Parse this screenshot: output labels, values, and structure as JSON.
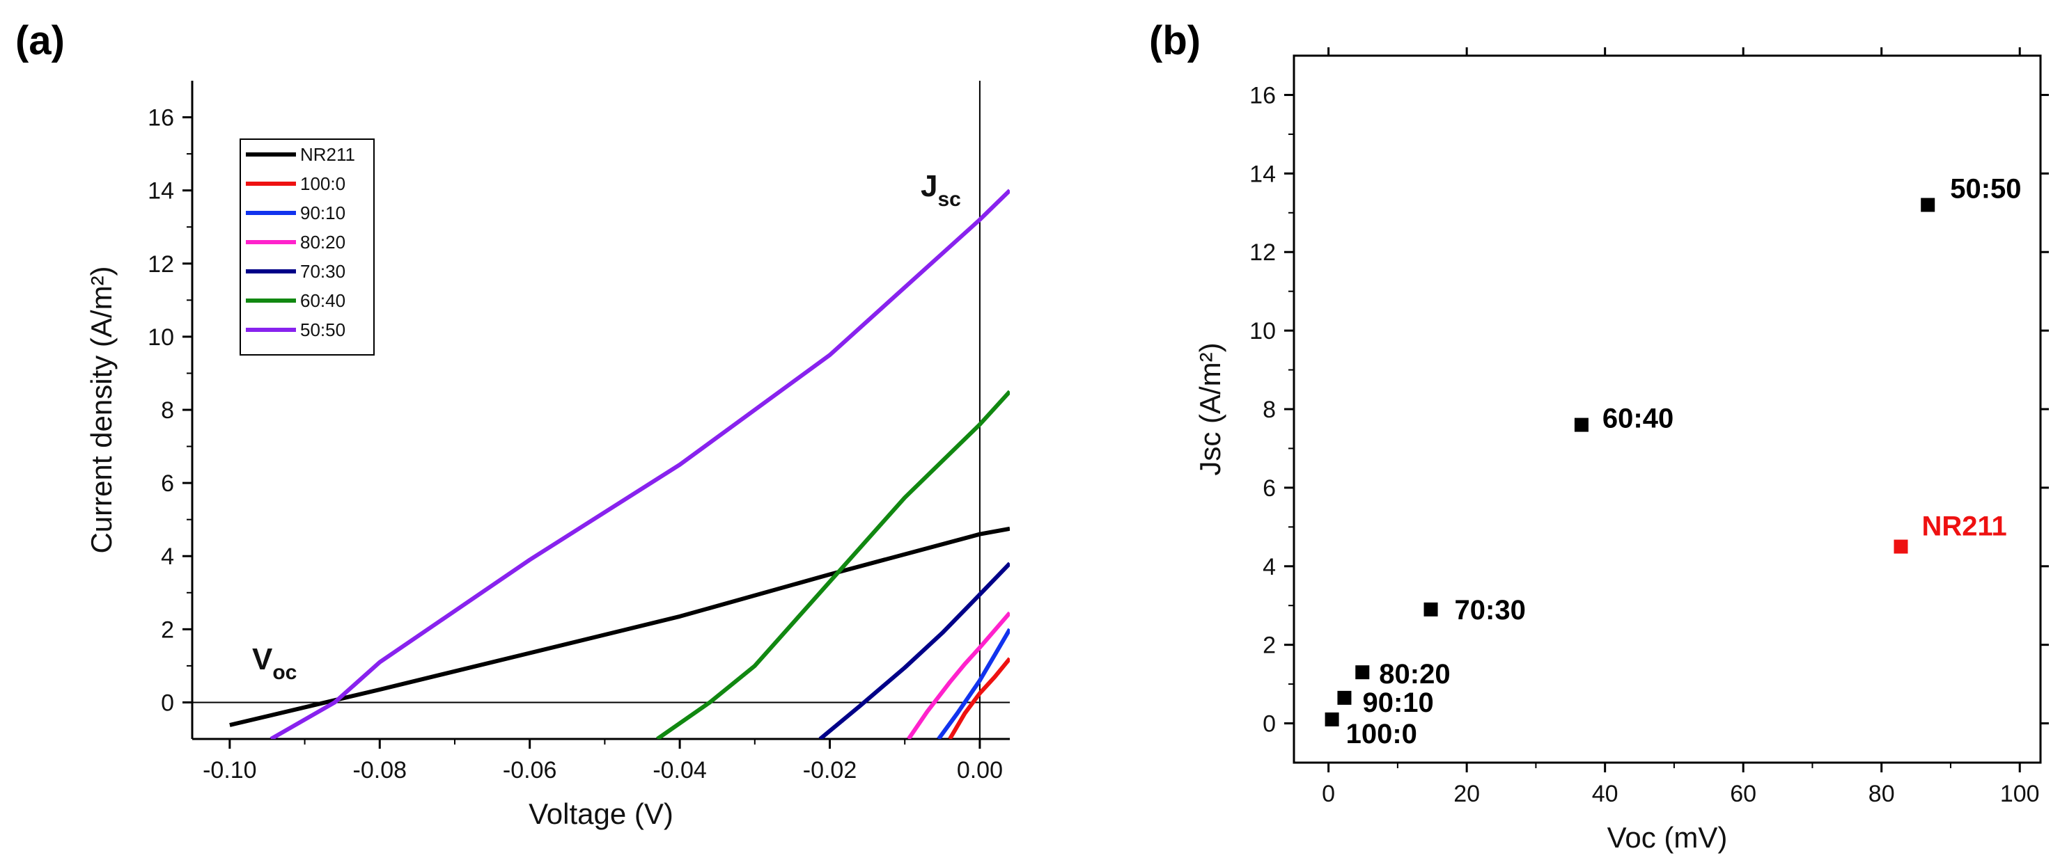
{
  "panels": {
    "a": {
      "label": "(a)"
    },
    "b": {
      "label": "(b)"
    }
  },
  "chart_data": [
    {
      "id": "a",
      "type": "line",
      "title": "",
      "xlabel": "Voltage (V)",
      "ylabel": "Current density (A/m²)",
      "xlim": [
        -0.105,
        0.004
      ],
      "ylim": [
        -1,
        17
      ],
      "xticks": [
        -0.1,
        -0.08,
        -0.06,
        -0.04,
        -0.02,
        0.0
      ],
      "xtick_labels": [
        "-0.10",
        "-0.08",
        "-0.06",
        "-0.04",
        "-0.02",
        "0.00"
      ],
      "yticks": [
        0,
        2,
        4,
        6,
        8,
        10,
        12,
        14,
        16
      ],
      "ytick_labels": [
        "0",
        "2",
        "4",
        "6",
        "8",
        "10",
        "12",
        "14",
        "16"
      ],
      "grid": false,
      "legend_position": "top-left",
      "annotations": [
        {
          "main": "J",
          "sub": "sc"
        },
        {
          "main": "V",
          "sub": "oc"
        }
      ],
      "series": [
        {
          "name": "NR211",
          "color": "#000000",
          "x": [
            -0.1,
            -0.08,
            -0.06,
            -0.04,
            -0.02,
            0.0,
            0.004
          ],
          "y": [
            -0.62,
            0.35,
            1.35,
            2.35,
            3.5,
            4.6,
            4.75
          ]
        },
        {
          "name": "100:0",
          "color": "#ee1111",
          "x": [
            -0.004,
            -0.002,
            0.0,
            0.002,
            0.004
          ],
          "y": [
            -1.0,
            -0.3,
            0.25,
            0.7,
            1.2
          ]
        },
        {
          "name": "90:10",
          "color": "#1133ee",
          "x": [
            -0.0055,
            -0.003,
            0.0,
            0.002,
            0.004
          ],
          "y": [
            -1.0,
            -0.3,
            0.6,
            1.3,
            2.0
          ]
        },
        {
          "name": "80:20",
          "color": "#ff22cc",
          "x": [
            -0.0095,
            -0.007,
            -0.004,
            -0.002,
            0.0,
            0.004
          ],
          "y": [
            -1.0,
            -0.25,
            0.55,
            1.05,
            1.5,
            2.45
          ]
        },
        {
          "name": "70:30",
          "color": "#000088",
          "x": [
            -0.0213,
            -0.016,
            -0.01,
            -0.005,
            0.0,
            0.004
          ],
          "y": [
            -1.0,
            -0.1,
            0.95,
            1.9,
            2.95,
            3.8
          ]
        },
        {
          "name": "60:40",
          "color": "#118811",
          "x": [
            -0.043,
            -0.036,
            -0.03,
            -0.02,
            -0.01,
            0.0,
            0.004
          ],
          "y": [
            -1.0,
            0.0,
            1.0,
            3.3,
            5.6,
            7.6,
            8.5
          ]
        },
        {
          "name": "50:50",
          "color": "#8822ee",
          "x": [
            -0.0945,
            -0.086,
            -0.08,
            -0.06,
            -0.04,
            -0.02,
            0.0,
            0.004
          ],
          "y": [
            -1.0,
            0.0,
            1.1,
            3.9,
            6.5,
            9.5,
            13.2,
            14.0
          ]
        }
      ]
    },
    {
      "id": "b",
      "type": "scatter",
      "title": "",
      "xlabel": "Voc (mV)",
      "ylabel": "Jsc (A/m²)",
      "xlim": [
        -5,
        103
      ],
      "ylim": [
        -1,
        17
      ],
      "xticks": [
        0,
        20,
        40,
        60,
        80,
        100
      ],
      "xtick_labels": [
        "0",
        "20",
        "40",
        "60",
        "80",
        "100"
      ],
      "yticks": [
        0,
        2,
        4,
        6,
        8,
        10,
        12,
        14,
        16
      ],
      "ytick_labels": [
        "0",
        "2",
        "4",
        "6",
        "8",
        "10",
        "12",
        "14",
        "16"
      ],
      "grid": false,
      "points": [
        {
          "label": "100:0",
          "x": 0.5,
          "y": 0.1,
          "color": "#000000"
        },
        {
          "label": "90:10",
          "x": 2.3,
          "y": 0.65,
          "color": "#000000"
        },
        {
          "label": "80:20",
          "x": 4.9,
          "y": 1.3,
          "color": "#000000"
        },
        {
          "label": "70:30",
          "x": 14.8,
          "y": 2.9,
          "color": "#000000"
        },
        {
          "label": "60:40",
          "x": 36.6,
          "y": 7.6,
          "color": "#000000"
        },
        {
          "label": "NR211",
          "x": 82.8,
          "y": 4.5,
          "color": "#ee1111"
        },
        {
          "label": "50:50",
          "x": 86.7,
          "y": 13.2,
          "color": "#000000"
        }
      ]
    }
  ]
}
